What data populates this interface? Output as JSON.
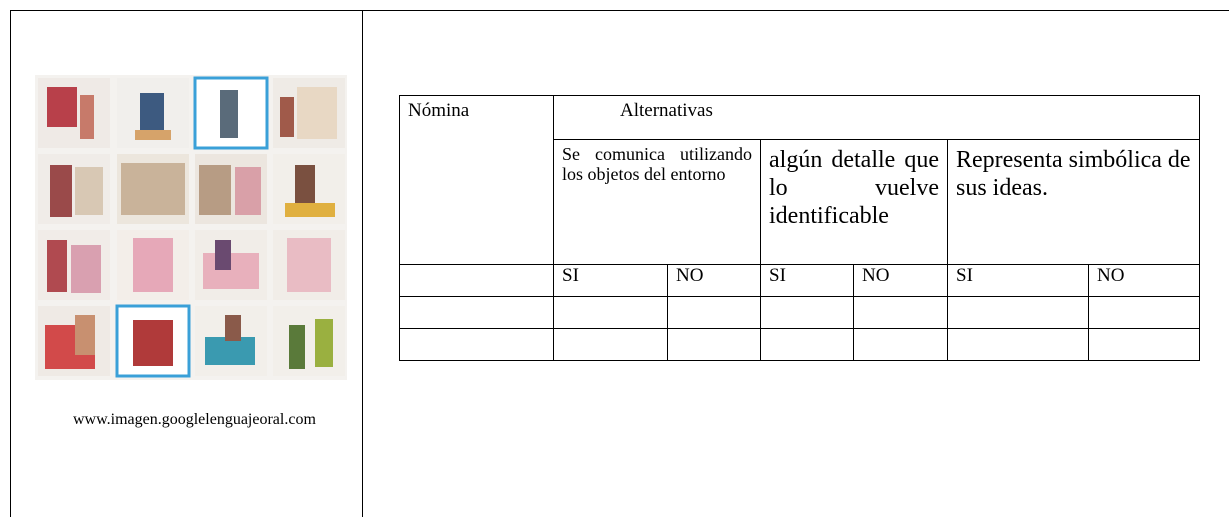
{
  "header": {
    "nomina": "Nómina",
    "alternativas": "Alternativas"
  },
  "criteria": [
    "Se comunica utilizando los objetos del entorno",
    "algún detalle que lo vuelve identificable",
    "Representa simbólica de sus ideas."
  ],
  "answer_labels": [
    "SI",
    "NO",
    "SI",
    "NO",
    "SI",
    "NO"
  ],
  "image": {
    "caption": "www.imagen.googlelenguajeoral.com"
  }
}
